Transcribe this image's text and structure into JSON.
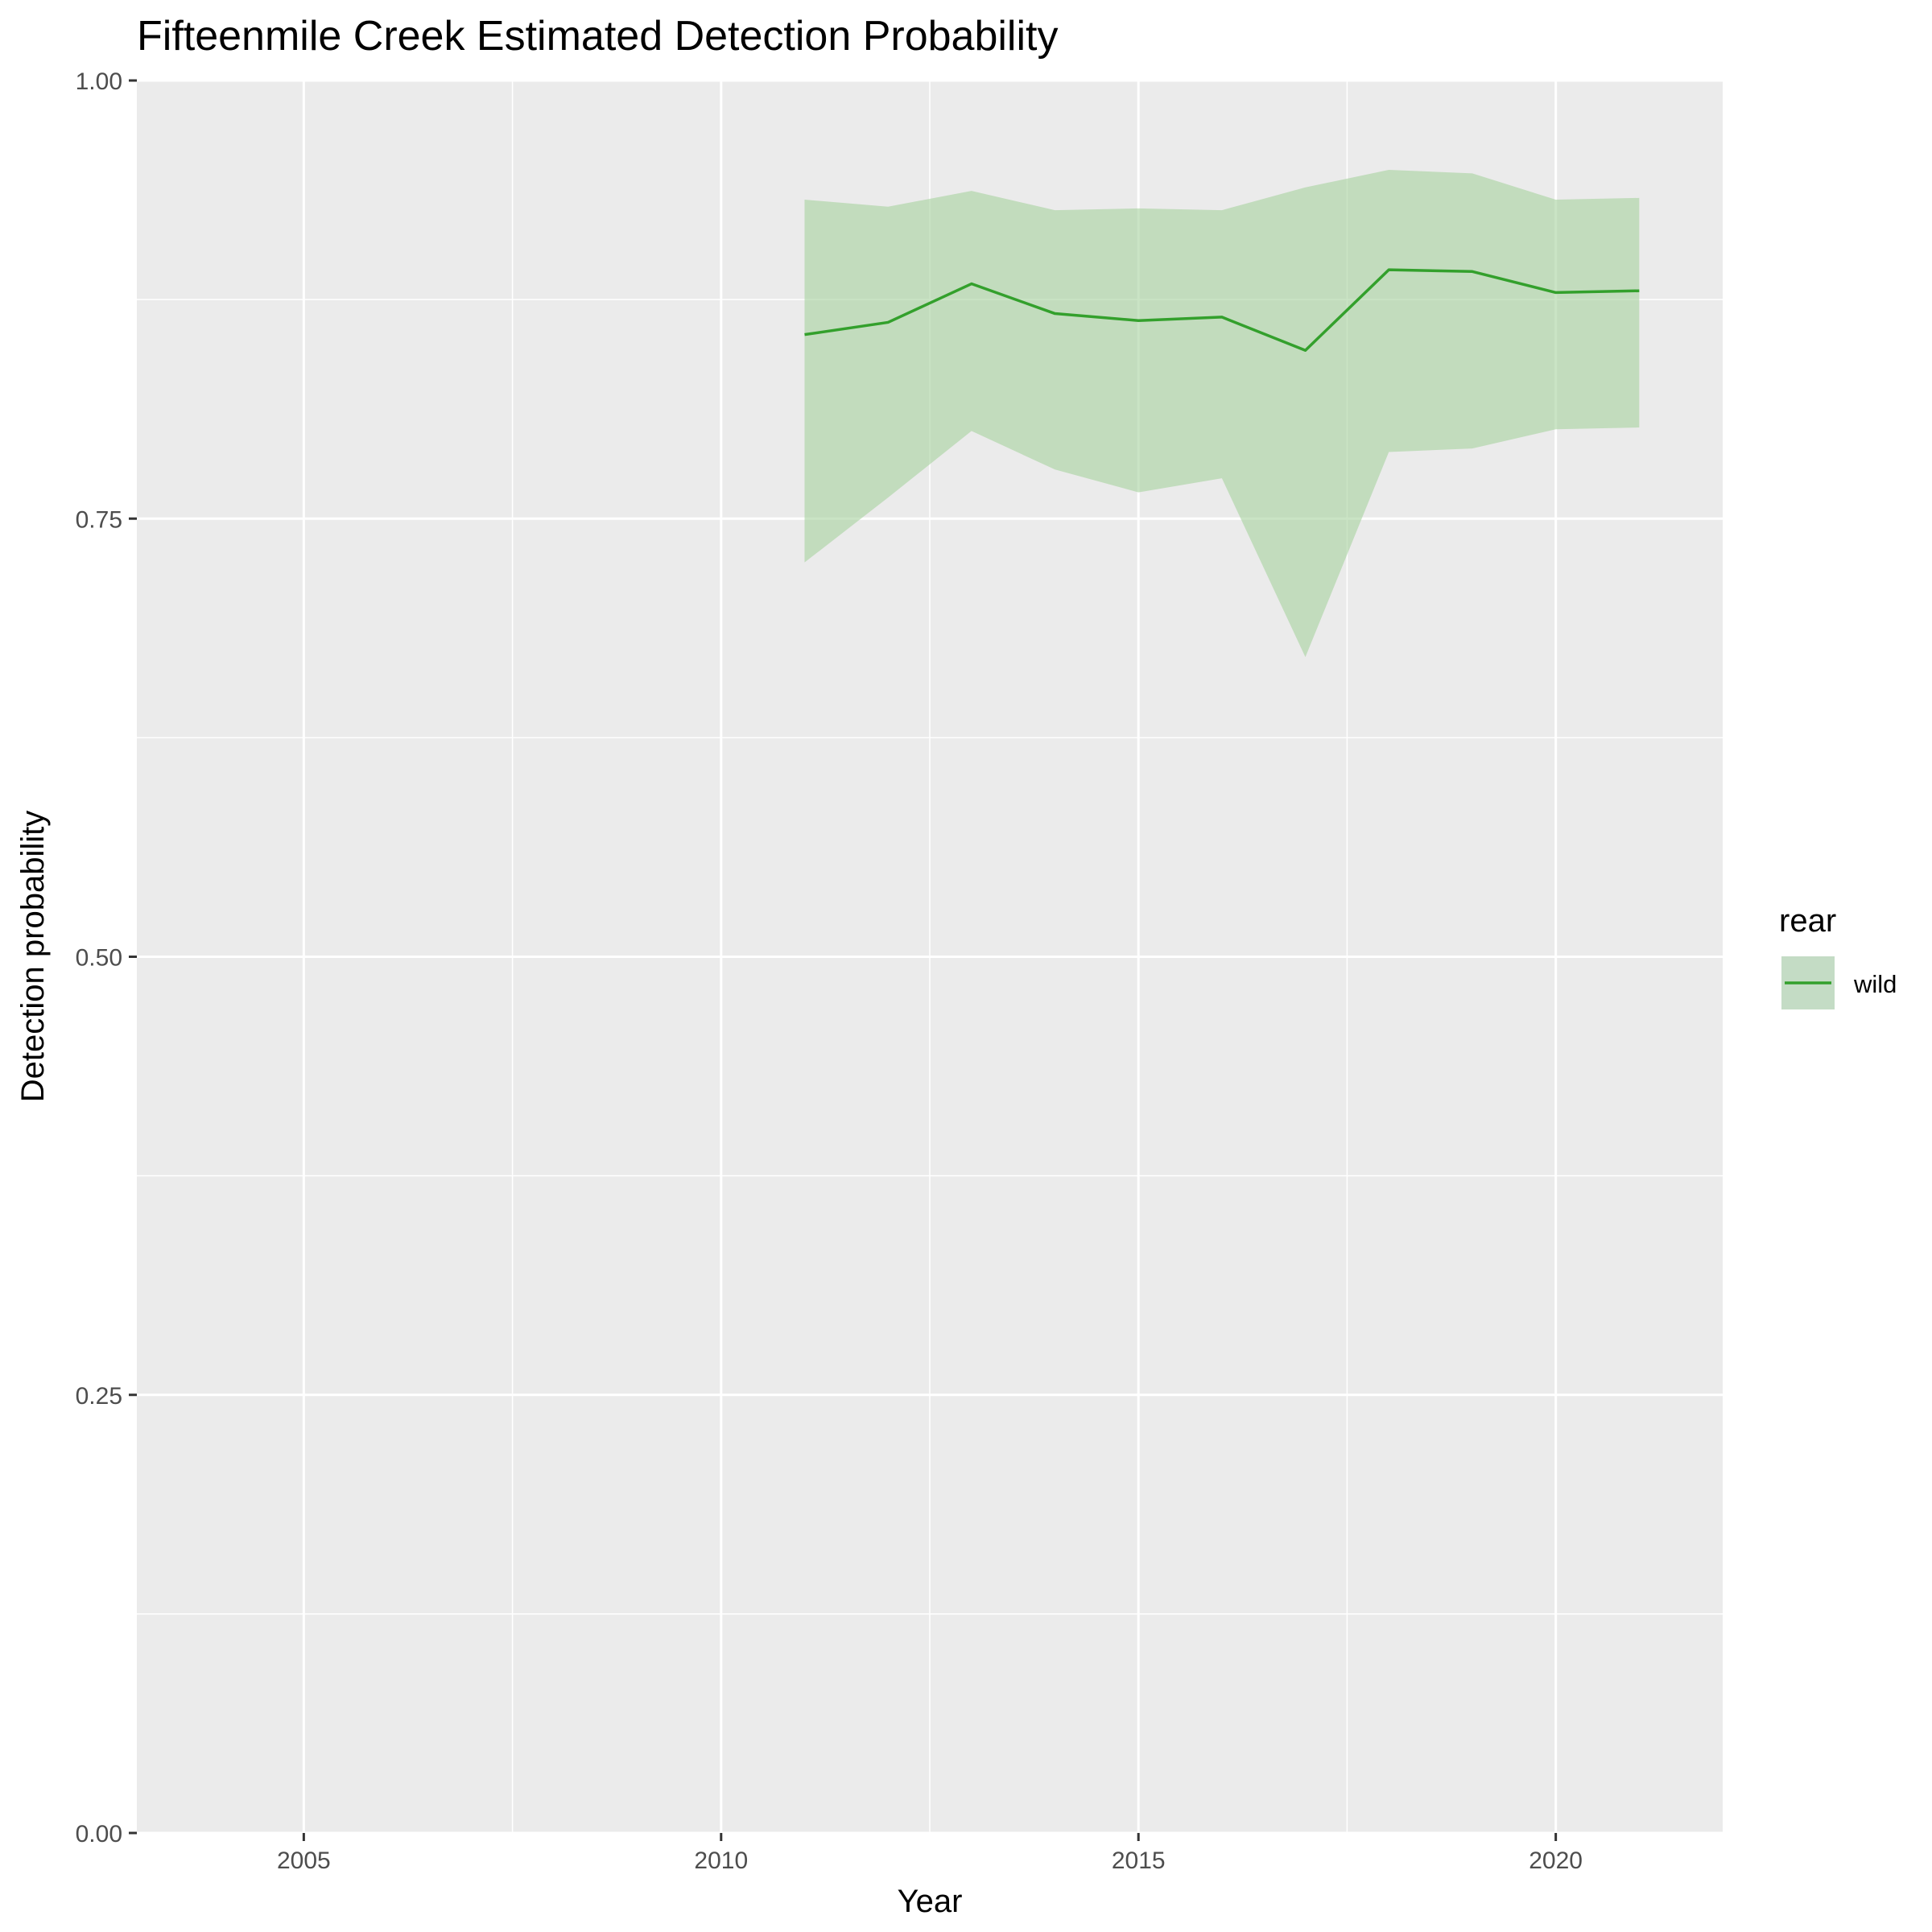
{
  "chart_data": {
    "type": "line",
    "title": "Fifteenmile Creek Estimated Detection Probability",
    "xlabel": "Year",
    "ylabel": "Detection probability",
    "xlim": [
      2003,
      2022
    ],
    "ylim": [
      0,
      1
    ],
    "x_ticks": [
      2005,
      2010,
      2015,
      2020
    ],
    "x_tick_labels": [
      "2005",
      "2010",
      "2015",
      "2020"
    ],
    "y_ticks": [
      0,
      0.25,
      0.5,
      0.75,
      1
    ],
    "y_tick_labels": [
      "0.00",
      "0.25",
      "0.50",
      "0.75",
      "1.00"
    ],
    "grid": true,
    "panel_background": "#ebebeb",
    "legend": {
      "title": "rear",
      "position": "right",
      "entries": [
        "wild"
      ]
    },
    "series": [
      {
        "name": "wild",
        "color": "#33a02c",
        "ribbon_color": "#a6d29f",
        "x": [
          2011,
          2012,
          2013,
          2014,
          2015,
          2016,
          2017,
          2018,
          2019,
          2020,
          2021
        ],
        "y": [
          0.855,
          0.862,
          0.884,
          0.867,
          0.863,
          0.865,
          0.846,
          0.892,
          0.891,
          0.879,
          0.88
        ],
        "lower": [
          0.725,
          0.762,
          0.8,
          0.778,
          0.765,
          0.773,
          0.671,
          0.788,
          0.79,
          0.801,
          0.802
        ],
        "upper": [
          0.932,
          0.928,
          0.937,
          0.926,
          0.927,
          0.926,
          0.939,
          0.949,
          0.947,
          0.932,
          0.933
        ]
      }
    ]
  }
}
